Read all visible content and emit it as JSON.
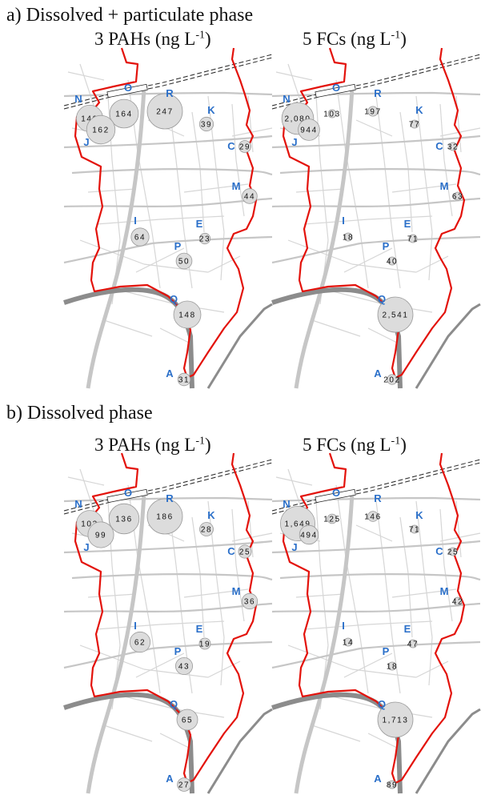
{
  "panels": [
    {
      "title": "a) Dissolved + particulate phase",
      "maps": [
        {
          "title": "3 PAHs (ng L",
          "unit_exp": "-1",
          "title_close": ")",
          "sites": [
            {
              "label": "N",
              "value": "140",
              "size": 140
            },
            {
              "label": "O",
              "value": "164",
              "size": 164
            },
            {
              "label": "J",
              "value": "162",
              "size": 162
            },
            {
              "label": "R",
              "value": "247",
              "size": 247
            },
            {
              "label": "K",
              "value": "39",
              "size": 39
            },
            {
              "label": "C",
              "value": "29",
              "size": 29
            },
            {
              "label": "M",
              "value": "44",
              "size": 44
            },
            {
              "label": "I",
              "value": "64",
              "size": 64
            },
            {
              "label": "E",
              "value": "23",
              "size": 23
            },
            {
              "label": "P",
              "value": "50",
              "size": 50
            },
            {
              "label": "Q",
              "value": "148",
              "size": 148
            },
            {
              "label": "A",
              "value": "31",
              "size": 31
            }
          ]
        },
        {
          "title": "5 FCs (ng L",
          "unit_exp": "-1",
          "title_close": ")",
          "sites": [
            {
              "label": "N",
              "value": "2,080",
              "size": 2080
            },
            {
              "label": "O",
              "value": "103",
              "size": 103
            },
            {
              "label": "J",
              "value": "944",
              "size": 944
            },
            {
              "label": "R",
              "value": "197",
              "size": 197
            },
            {
              "label": "K",
              "value": "77",
              "size": 77
            },
            {
              "label": "C",
              "value": "32",
              "size": 32
            },
            {
              "label": "M",
              "value": "63",
              "size": 63
            },
            {
              "label": "I",
              "value": "18",
              "size": 18
            },
            {
              "label": "E",
              "value": "71",
              "size": 71
            },
            {
              "label": "P",
              "value": "40",
              "size": 40
            },
            {
              "label": "Q",
              "value": "2,541",
              "size": 2541
            },
            {
              "label": "A",
              "value": "202",
              "size": 202
            }
          ]
        }
      ]
    },
    {
      "title": "b) Dissolved phase",
      "maps": [
        {
          "title": "3 PAHs (ng L",
          "unit_exp": "-1",
          "title_close": ")",
          "sites": [
            {
              "label": "N",
              "value": "103",
              "size": 103
            },
            {
              "label": "O",
              "value": "136",
              "size": 136
            },
            {
              "label": "J",
              "value": "99",
              "size": 99
            },
            {
              "label": "R",
              "value": "186",
              "size": 186
            },
            {
              "label": "K",
              "value": "28",
              "size": 28
            },
            {
              "label": "C",
              "value": "25",
              "size": 25
            },
            {
              "label": "M",
              "value": "36",
              "size": 36
            },
            {
              "label": "I",
              "value": "62",
              "size": 62
            },
            {
              "label": "E",
              "value": "19",
              "size": 19
            },
            {
              "label": "P",
              "value": "43",
              "size": 43
            },
            {
              "label": "Q",
              "value": "65",
              "size": 65
            },
            {
              "label": "A",
              "value": "27",
              "size": 27
            }
          ]
        },
        {
          "title": "5 FCs (ng L",
          "unit_exp": "-1",
          "title_close": ")",
          "sites": [
            {
              "label": "N",
              "value": "1,649",
              "size": 1649
            },
            {
              "label": "O",
              "value": "125",
              "size": 125
            },
            {
              "label": "J",
              "value": "494",
              "size": 494
            },
            {
              "label": "R",
              "value": "146",
              "size": 146
            },
            {
              "label": "K",
              "value": "71",
              "size": 71
            },
            {
              "label": "C",
              "value": "25",
              "size": 25
            },
            {
              "label": "M",
              "value": "42",
              "size": 42
            },
            {
              "label": "I",
              "value": "14",
              "size": 14
            },
            {
              "label": "E",
              "value": "47",
              "size": 47
            },
            {
              "label": "P",
              "value": "18",
              "size": 18
            },
            {
              "label": "Q",
              "value": "1,713",
              "size": 1713
            },
            {
              "label": "A",
              "value": "89",
              "size": 89
            }
          ]
        }
      ]
    }
  ],
  "colors": {
    "boundary": "#e3120b",
    "river": "#8c8c8c",
    "road_major": "#c6c6c6",
    "road_minor": "#d6d6d6",
    "bubble_fill": "#dcdcdc",
    "bubble_stroke": "#9a9a9a",
    "site_label": "#2a6fc9"
  }
}
